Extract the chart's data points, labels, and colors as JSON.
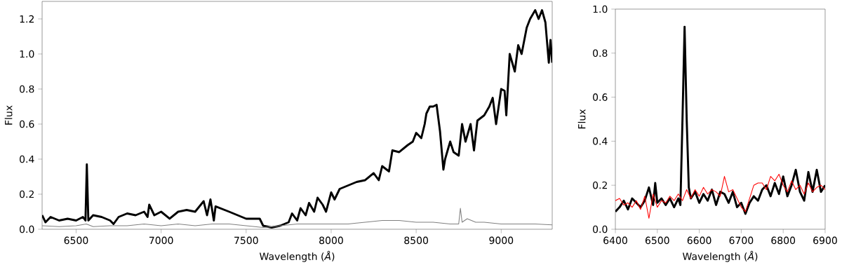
{
  "chart_data": [
    {
      "type": "line",
      "xlabel": "Wavelength (*Å*)",
      "ylabel": "Flux",
      "xlim": [
        6300,
        9300
      ],
      "ylim": [
        0,
        1.3
      ],
      "xticks": [
        6500,
        7000,
        7500,
        8000,
        8500,
        9000
      ],
      "yticks": [
        {
          "value": 0,
          "label": "0.0"
        },
        {
          "value": 0.2,
          "label": "0.2"
        },
        {
          "value": 0.4,
          "label": "0.4"
        },
        {
          "value": 0.6,
          "label": "0.6"
        },
        {
          "value": 0.8,
          "label": "0.8"
        },
        {
          "value": 1.0,
          "label": "1.0"
        },
        {
          "value": 1.2,
          "label": "1.2"
        }
      ],
      "series": [
        {
          "color": "#000000",
          "x": [
            6300,
            6320,
            6350,
            6400,
            6450,
            6500,
            6540,
            6555,
            6563,
            6572,
            6600,
            6650,
            6700,
            6720,
            6750,
            6800,
            6850,
            6900,
            6920,
            6930,
            6960,
            7000,
            7050,
            7100,
            7150,
            7200,
            7250,
            7270,
            7290,
            7310,
            7320,
            7400,
            7450,
            7500,
            7550,
            7580,
            7600,
            7650,
            7700,
            7750,
            7770,
            7800,
            7820,
            7850,
            7870,
            7900,
            7920,
            7950,
            7970,
            8000,
            8020,
            8050,
            8100,
            8150,
            8200,
            8250,
            8280,
            8300,
            8340,
            8360,
            8400,
            8450,
            8480,
            8500,
            8530,
            8550,
            8560,
            8580,
            8600,
            8620,
            8640,
            8660,
            8670,
            8700,
            8720,
            8750,
            8770,
            8790,
            8820,
            8840,
            8860,
            8900,
            8930,
            8950,
            8970,
            9000,
            9020,
            9030,
            9050,
            9080,
            9100,
            9120,
            9150,
            9170,
            9200,
            9220,
            9240,
            9260,
            9280,
            9290,
            9300
          ],
          "values": [
            0.08,
            0.04,
            0.07,
            0.05,
            0.06,
            0.05,
            0.07,
            0.05,
            0.37,
            0.05,
            0.08,
            0.07,
            0.05,
            0.03,
            0.07,
            0.09,
            0.08,
            0.1,
            0.07,
            0.14,
            0.08,
            0.1,
            0.06,
            0.1,
            0.11,
            0.1,
            0.16,
            0.08,
            0.17,
            0.05,
            0.13,
            0.1,
            0.08,
            0.06,
            0.06,
            0.06,
            0.02,
            0.01,
            0.02,
            0.04,
            0.09,
            0.05,
            0.12,
            0.08,
            0.15,
            0.1,
            0.18,
            0.14,
            0.1,
            0.21,
            0.17,
            0.23,
            0.25,
            0.27,
            0.28,
            0.32,
            0.28,
            0.36,
            0.33,
            0.45,
            0.44,
            0.48,
            0.5,
            0.55,
            0.52,
            0.6,
            0.66,
            0.7,
            0.7,
            0.71,
            0.56,
            0.34,
            0.4,
            0.5,
            0.44,
            0.42,
            0.6,
            0.5,
            0.6,
            0.45,
            0.62,
            0.65,
            0.7,
            0.75,
            0.6,
            0.8,
            0.79,
            0.65,
            1.0,
            0.9,
            1.05,
            1.0,
            1.15,
            1.2,
            1.25,
            1.2,
            1.25,
            1.18,
            0.95,
            1.08,
            0.95
          ]
        },
        {
          "color": "#808080",
          "x": [
            6300,
            6400,
            6500,
            6560,
            6600,
            6700,
            6800,
            6900,
            7000,
            7100,
            7200,
            7300,
            7400,
            7500,
            7600,
            7700,
            7800,
            7900,
            8000,
            8100,
            8200,
            8300,
            8400,
            8500,
            8600,
            8700,
            8750,
            8760,
            8770,
            8800,
            8850,
            8900,
            9000,
            9100,
            9200,
            9300
          ],
          "values": [
            0.02,
            0.015,
            0.02,
            0.03,
            0.015,
            0.02,
            0.02,
            0.03,
            0.02,
            0.03,
            0.02,
            0.03,
            0.03,
            0.02,
            0.01,
            0.02,
            0.03,
            0.03,
            0.03,
            0.03,
            0.04,
            0.05,
            0.05,
            0.04,
            0.04,
            0.03,
            0.03,
            0.12,
            0.04,
            0.06,
            0.04,
            0.04,
            0.03,
            0.03,
            0.03,
            0.025
          ]
        }
      ]
    },
    {
      "type": "line",
      "xlabel": "Wavelength (*Å*)",
      "ylabel": "Flux",
      "xlim": [
        6400,
        6900
      ],
      "ylim": [
        0,
        1.0
      ],
      "xticks": [
        6400,
        6500,
        6600,
        6700,
        6800,
        6900
      ],
      "yticks": [
        {
          "value": 0,
          "label": "0.0"
        },
        {
          "value": 0.2,
          "label": "0.2"
        },
        {
          "value": 0.4,
          "label": "0.4"
        },
        {
          "value": 0.6,
          "label": "0.6"
        },
        {
          "value": 0.8,
          "label": "0.8"
        },
        {
          "value": 1.0,
          "label": "1.0"
        }
      ],
      "series": [
        {
          "color": "#000000",
          "x": [
            6400,
            6410,
            6420,
            6430,
            6440,
            6450,
            6460,
            6470,
            6480,
            6490,
            6495,
            6500,
            6510,
            6520,
            6530,
            6540,
            6550,
            6555,
            6560,
            6565,
            6570,
            6575,
            6580,
            6590,
            6600,
            6610,
            6620,
            6630,
            6640,
            6650,
            6660,
            6670,
            6680,
            6690,
            6700,
            6710,
            6720,
            6730,
            6740,
            6750,
            6760,
            6770,
            6780,
            6790,
            6800,
            6810,
            6820,
            6830,
            6840,
            6850,
            6860,
            6870,
            6880,
            6890,
            6900
          ],
          "values": [
            0.08,
            0.1,
            0.13,
            0.09,
            0.14,
            0.12,
            0.1,
            0.13,
            0.19,
            0.11,
            0.21,
            0.12,
            0.14,
            0.11,
            0.14,
            0.1,
            0.14,
            0.11,
            0.5,
            0.92,
            0.5,
            0.19,
            0.14,
            0.17,
            0.12,
            0.16,
            0.13,
            0.18,
            0.11,
            0.17,
            0.16,
            0.12,
            0.17,
            0.1,
            0.12,
            0.07,
            0.12,
            0.15,
            0.13,
            0.18,
            0.2,
            0.15,
            0.21,
            0.16,
            0.24,
            0.15,
            0.2,
            0.27,
            0.17,
            0.13,
            0.26,
            0.17,
            0.27,
            0.17,
            0.2
          ]
        },
        {
          "color": "#ff0000",
          "x": [
            6400,
            6410,
            6420,
            6430,
            6440,
            6450,
            6460,
            6470,
            6480,
            6490,
            6500,
            6510,
            6520,
            6530,
            6540,
            6550,
            6560,
            6570,
            6580,
            6590,
            6600,
            6610,
            6620,
            6630,
            6640,
            6650,
            6660,
            6670,
            6680,
            6690,
            6700,
            6710,
            6720,
            6730,
            6740,
            6750,
            6760,
            6770,
            6780,
            6790,
            6800,
            6810,
            6820,
            6830,
            6840,
            6850,
            6860,
            6870,
            6880,
            6890,
            6900
          ],
          "values": [
            0.13,
            0.14,
            0.11,
            0.12,
            0.1,
            0.13,
            0.09,
            0.15,
            0.05,
            0.16,
            0.1,
            0.13,
            0.12,
            0.15,
            0.13,
            0.16,
            0.13,
            0.18,
            0.14,
            0.18,
            0.15,
            0.19,
            0.16,
            0.18,
            0.17,
            0.15,
            0.24,
            0.17,
            0.18,
            0.14,
            0.1,
            0.08,
            0.14,
            0.2,
            0.21,
            0.21,
            0.18,
            0.24,
            0.22,
            0.25,
            0.2,
            0.17,
            0.22,
            0.18,
            0.2,
            0.16,
            0.21,
            0.17,
            0.19,
            0.2,
            0.18
          ]
        }
      ]
    }
  ]
}
